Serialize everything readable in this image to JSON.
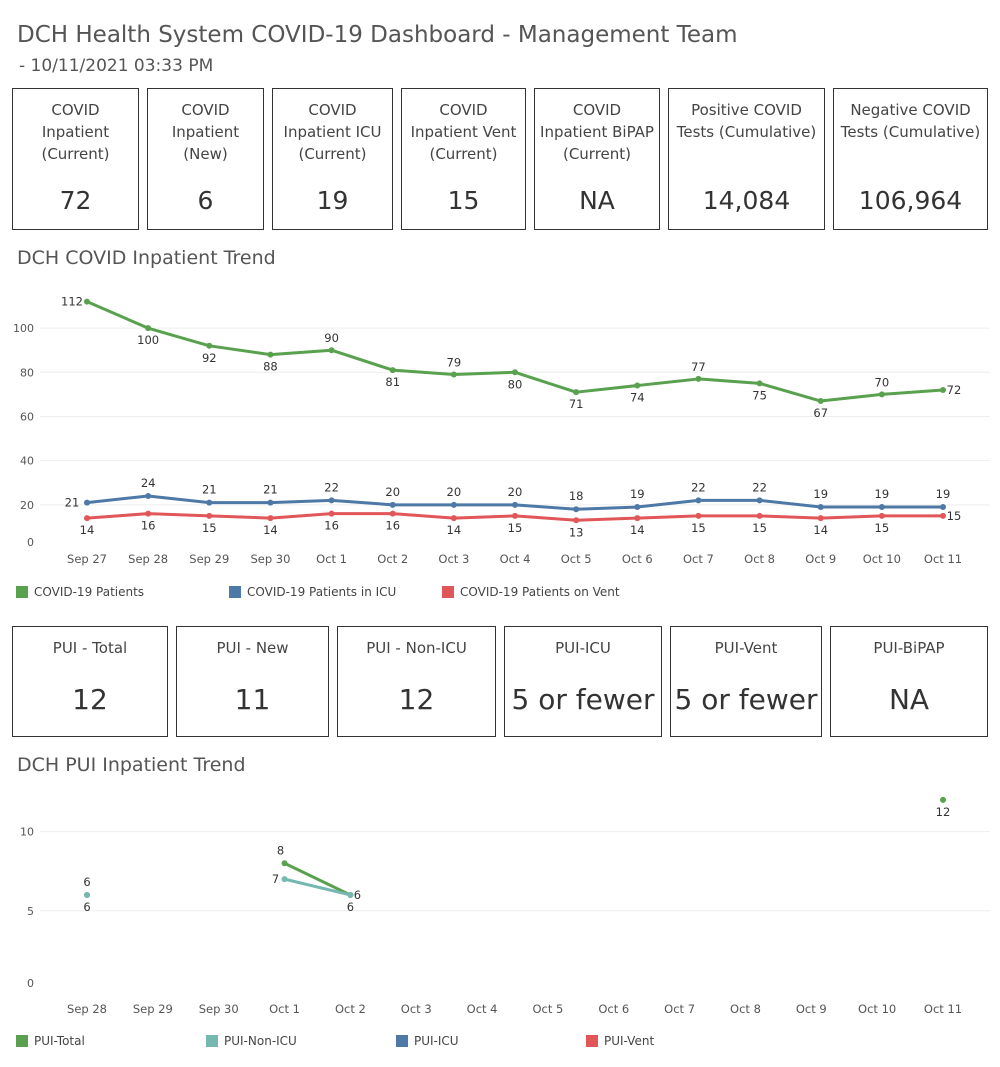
{
  "header": {
    "title": "DCH Health System COVID-19 Dashboard - Management Team",
    "subtitle": "- 10/11/2021 03:33 PM"
  },
  "kpis": [
    {
      "label": "COVID Inpatient (Current)",
      "value": "72"
    },
    {
      "label": "COVID Inpatient (New)",
      "value": "6"
    },
    {
      "label": "COVID Inpatient ICU (Current)",
      "value": "19"
    },
    {
      "label": "COVID Inpatient Vent (Current)",
      "value": "15"
    },
    {
      "label": "COVID Inpatient BiPAP (Current)",
      "value": "NA"
    },
    {
      "label": "Positive COVID Tests (Cumulative)",
      "value": "14,084"
    },
    {
      "label": "Negative COVID Tests (Cumulative)",
      "value": "106,964"
    }
  ],
  "pui_kpis": [
    {
      "label": "PUI - Total",
      "value": "12"
    },
    {
      "label": "PUI - New",
      "value": "11"
    },
    {
      "label": "PUI - Non-ICU",
      "value": "12"
    },
    {
      "label": "PUI-ICU",
      "value": "5 or fewer"
    },
    {
      "label": "PUI-Vent",
      "value": "5 or fewer"
    },
    {
      "label": "PUI-BiPAP",
      "value": "NA"
    }
  ],
  "colors": {
    "green": "#59a14f",
    "blue": "#4e79a7",
    "red": "#e15759",
    "teal": "#76b7b2"
  },
  "chart_data": [
    {
      "type": "line",
      "title": "DCH COVID Inpatient Trend",
      "categories": [
        "Sep 27",
        "Sep 28",
        "Sep 29",
        "Sep 30",
        "Oct 1",
        "Oct 2",
        "Oct 3",
        "Oct 4",
        "Oct 5",
        "Oct 6",
        "Oct 7",
        "Oct 8",
        "Oct 9",
        "Oct 10",
        "Oct 11"
      ],
      "yticks": [
        0,
        20,
        40,
        60,
        80,
        100
      ],
      "ylim": [
        0,
        115
      ],
      "grid": true,
      "legend_position": "bottom",
      "series": [
        {
          "name": "COVID-19 Patients",
          "color": "#59a14f",
          "values": [
            112,
            100,
            92,
            88,
            90,
            81,
            79,
            80,
            71,
            74,
            77,
            75,
            67,
            70,
            72
          ]
        },
        {
          "name": "COVID-19 Patients in ICU",
          "color": "#4e79a7",
          "values": [
            21,
            24,
            21,
            21,
            22,
            20,
            20,
            20,
            18,
            19,
            22,
            22,
            19,
            19,
            19
          ]
        },
        {
          "name": "COVID-19 Patients on Vent",
          "color": "#e15759",
          "values": [
            14,
            16,
            15,
            14,
            16,
            16,
            14,
            15,
            13,
            14,
            15,
            15,
            14,
            15,
            15
          ]
        }
      ]
    },
    {
      "type": "line",
      "title": "DCH PUI Inpatient Trend",
      "categories": [
        "Sep 28",
        "Sep 29",
        "Sep 30",
        "Oct 1",
        "Oct 2",
        "Oct 3",
        "Oct 4",
        "Oct 5",
        "Oct 6",
        "Oct 7",
        "Oct 8",
        "Oct 9",
        "Oct 10",
        "Oct 11"
      ],
      "yticks": [
        0,
        5,
        10
      ],
      "ylim": [
        0,
        12.5
      ],
      "grid": true,
      "legend_position": "bottom",
      "series": [
        {
          "name": "PUI-Total",
          "color": "#59a14f",
          "values": [
            6,
            null,
            null,
            8,
            6,
            null,
            null,
            null,
            null,
            null,
            null,
            null,
            null,
            12
          ]
        },
        {
          "name": "PUI-Non-ICU",
          "color": "#76b7b2",
          "values": [
            6,
            null,
            null,
            7,
            6,
            null,
            null,
            null,
            null,
            null,
            null,
            null,
            null,
            null
          ]
        },
        {
          "name": "PUI-ICU",
          "color": "#4e79a7",
          "values": [
            null,
            null,
            null,
            null,
            null,
            null,
            null,
            null,
            null,
            null,
            null,
            null,
            null,
            null
          ]
        },
        {
          "name": "PUI-Vent",
          "color": "#e15759",
          "values": [
            null,
            null,
            null,
            null,
            null,
            null,
            null,
            null,
            null,
            null,
            null,
            null,
            null,
            null
          ]
        }
      ]
    }
  ]
}
